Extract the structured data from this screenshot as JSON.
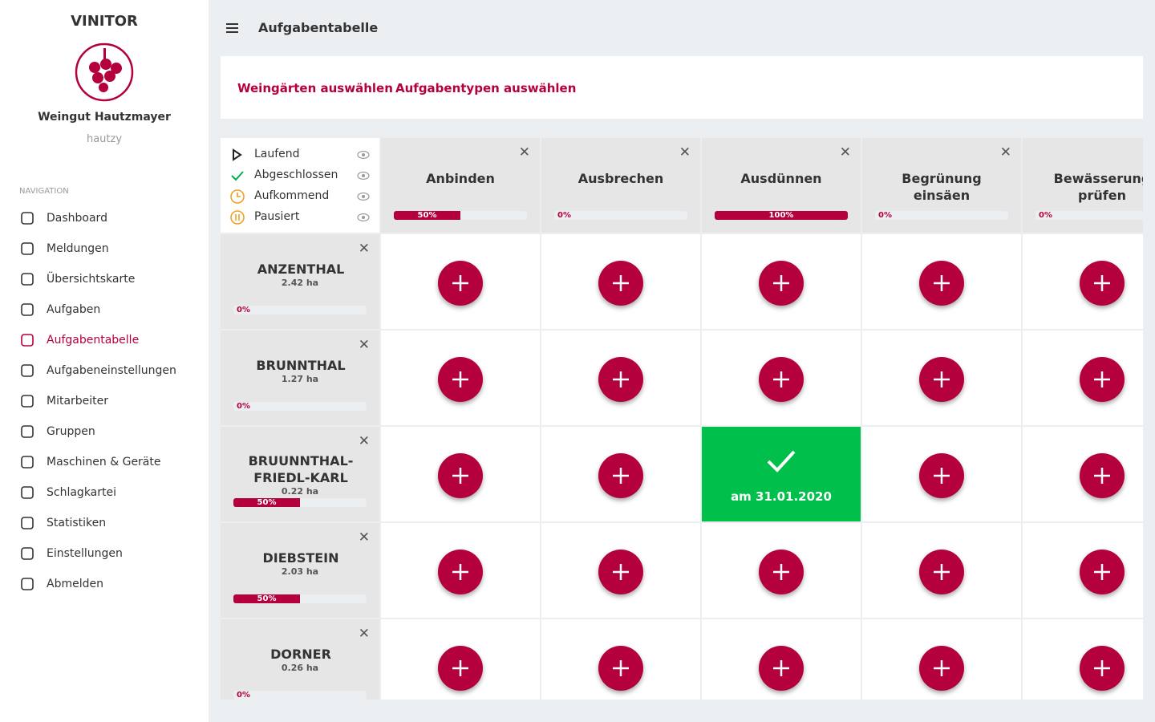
{
  "brand": "VINITOR",
  "company": "Weingut Hautzmayer",
  "user": "hautzy",
  "nav_heading": "NAVIGATION",
  "nav": [
    {
      "label": "Dashboard",
      "active": false
    },
    {
      "label": "Meldungen",
      "active": false
    },
    {
      "label": "Übersichtskarte",
      "active": false
    },
    {
      "label": "Aufgaben",
      "active": false
    },
    {
      "label": "Aufgabentabelle",
      "active": true
    },
    {
      "label": "Aufgabeneinstellungen",
      "active": false
    },
    {
      "label": "Mitarbeiter",
      "active": false
    },
    {
      "label": "Gruppen",
      "active": false
    },
    {
      "label": "Maschinen & Geräte",
      "active": false
    },
    {
      "label": "Schlagkartei",
      "active": false
    },
    {
      "label": "Statistiken",
      "active": false
    },
    {
      "label": "Einstellungen",
      "active": false
    },
    {
      "label": "Abmelden",
      "active": false
    }
  ],
  "page_title": "Aufgabentabelle",
  "filters": [
    "Weingärten auswählen",
    "Aufgabentypen auswählen"
  ],
  "legend": [
    "Laufend",
    "Abgeschlossen",
    "Aufkommend",
    "Pausiert"
  ],
  "tasks": [
    {
      "name": "Anbinden",
      "progress": 50,
      "progress_label": "50%"
    },
    {
      "name": "Ausbrechen",
      "progress": 0,
      "progress_label": "0%"
    },
    {
      "name": "Ausdünnen",
      "progress": 100,
      "progress_label": "100%"
    },
    {
      "name": "Begrünung einsäen",
      "progress": 0,
      "progress_label": "0%"
    },
    {
      "name": "Bewässerung prüfen",
      "progress": 0,
      "progress_label": "0%"
    }
  ],
  "vineyards": [
    {
      "name": "ANZENTHAL",
      "area": "2.42 ha",
      "progress": 0,
      "progress_label": "0%",
      "cells": [
        null,
        null,
        null,
        null,
        null
      ]
    },
    {
      "name": "BRUNNTHAL",
      "area": "1.27 ha",
      "progress": 0,
      "progress_label": "0%",
      "cells": [
        null,
        null,
        null,
        null,
        null
      ]
    },
    {
      "name": "BRUUNNTHAL-FRIEDL-KARL",
      "area": "0.22 ha",
      "progress": 50,
      "progress_label": "50%",
      "cells": [
        null,
        null,
        "am 31.01.2020",
        null,
        null
      ]
    },
    {
      "name": "DIEBSTEIN",
      "area": "2.03 ha",
      "progress": 50,
      "progress_label": "50%",
      "cells": [
        null,
        null,
        null,
        null,
        null
      ]
    },
    {
      "name": "DORNER",
      "area": "0.26 ha",
      "progress": 0,
      "progress_label": "0%",
      "cells": [
        null,
        null,
        null,
        null,
        null
      ]
    }
  ]
}
